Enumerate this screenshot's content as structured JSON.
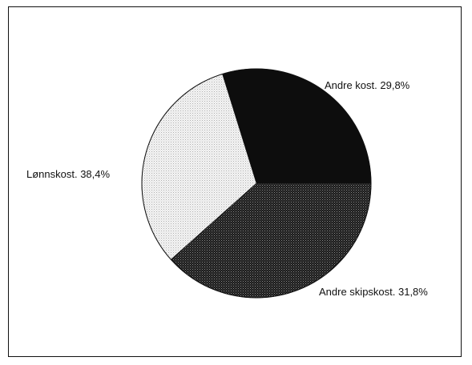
{
  "chart_data": {
    "type": "pie",
    "title": "",
    "slices": [
      {
        "label": "Andre kost.",
        "value": 29.8,
        "value_label": "29,8%",
        "pattern": "solid-black"
      },
      {
        "label": "Andre skipskost.",
        "value": 31.8,
        "value_label": "31,8%",
        "pattern": "light-stipple"
      },
      {
        "label": "Lønnskost.",
        "value": 38.4,
        "value_label": "38,4%",
        "pattern": "dark-stipple"
      }
    ],
    "start_angle_deg": 0,
    "direction": "counterclockwise-from-right",
    "legend": "none",
    "label_placement": "outside-slices"
  }
}
